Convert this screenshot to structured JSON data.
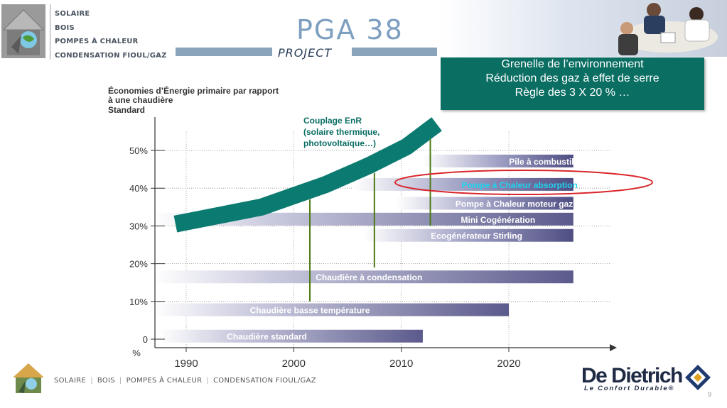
{
  "header": {
    "categories": [
      "SOLAIRE",
      "BOIS",
      "POMPES À CHALEUR",
      "CONDENSATION FIOUL/GAZ"
    ],
    "project_logo_main": "PGA 38",
    "project_logo_sub": "PROJECT",
    "callout_lines": [
      "Grenelle de l’environnement",
      "Réduction des gaz à effet de serre",
      "Règle des  3 X 20 % …"
    ]
  },
  "colors": {
    "teal": "#0b7a70",
    "dark_teal": "#0b6e63",
    "bar_purple": "#5c5a8e",
    "stem_green": "#4a7a12",
    "highlight_red": "#d9262b",
    "highlight_text": "#22d3ee"
  },
  "chart_data": {
    "type": "bar",
    "orientation": "horizontal",
    "title": "Économies d’Énergie primaire par rapport à une  chaudière",
    "title_line2": "Standard",
    "ylabel": "%",
    "xlim": [
      1987,
      2028
    ],
    "ylim": [
      0,
      55
    ],
    "y_ticks": [
      0,
      10,
      20,
      30,
      40,
      50
    ],
    "y_tick_labels": [
      "0",
      "10%",
      "20%",
      "30%",
      "40%",
      "50%"
    ],
    "x_ticks": [
      1990,
      2000,
      2010,
      2020
    ],
    "x_tick_labels": [
      "1990",
      "2000",
      "2010",
      "2020"
    ],
    "bars": [
      {
        "label": "Chaudière standard",
        "level": 0.8,
        "start": 1987.5,
        "end": 2012.0,
        "label_pos": 1997.5
      },
      {
        "label": "Chaudière basse température",
        "level": 7.8,
        "start": 1987.0,
        "end": 2020.0,
        "label_pos": 2001.5
      },
      {
        "label": "Chaudière à condensation",
        "level": 16.5,
        "start": 1987.0,
        "end": 2026.0,
        "label_pos": 2007.0
      },
      {
        "label": "Ecogénérateur Stirling",
        "level": 27.5,
        "start": 2006.5,
        "end": 2026.0,
        "label_pos": 2017.0
      },
      {
        "label": "Mini Cogénération",
        "level": 31.8,
        "start": 1987.0,
        "end": 2026.0,
        "label_pos": 2019.0
      },
      {
        "label": "Pompe à Chaleur moteur gaz",
        "level": 36.0,
        "start": 2009.5,
        "end": 2026.0,
        "label_pos": 2020.5
      },
      {
        "label": "Pompe à Chaleur absorption",
        "level": 41.0,
        "start": 2005.5,
        "end": 2026.0,
        "label_pos": 2021.0,
        "highlighted": true
      },
      {
        "label": "Pile à combustible",
        "level": 47.2,
        "start": 2012.0,
        "end": 2026.0,
        "label_pos": 2023.5
      }
    ],
    "trend": {
      "label_lines": [
        "Couplage EnR",
        "(solaire thermique,",
        "photovoltaïque…)"
      ],
      "x": [
        1989,
        1997,
        2003,
        2007,
        2010.5,
        2013.3
      ],
      "y": [
        30.5,
        35,
        41,
        46,
        51,
        57
      ]
    },
    "stems": [
      {
        "x": 2001.5,
        "y_from": 10,
        "y_to": 37
      },
      {
        "x": 2007.5,
        "y_from": 19,
        "y_to": 44
      },
      {
        "x": 2012.7,
        "y_from": 30,
        "y_to": 53
      }
    ]
  },
  "footer": {
    "categories": [
      "SOLAIRE",
      "BOIS",
      "POMPES À CHALEUR",
      "CONDENSATION FIOUL/GAZ"
    ],
    "brand": "De Dietrich",
    "tagline": "Le Confort Durable®",
    "page_number": "9"
  }
}
